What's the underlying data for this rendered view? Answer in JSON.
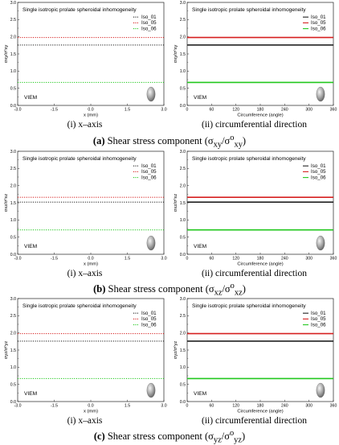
{
  "rows": [
    {
      "caption_prefix": "(a) ",
      "caption_text": "Shear stress component (σ",
      "caption_sub1": "xy",
      "caption_mid": "/σ",
      "caption_sup": "o",
      "caption_sub2": "xy",
      "caption_end": ")",
      "left_caption_num": "(i)",
      "left_caption_text": " x–axis",
      "right_caption_num": "(ii)",
      "right_caption_text": " circumferential direction",
      "ylabel": "σxy/σºxy"
    },
    {
      "caption_prefix": "(b) ",
      "caption_text": "Shear stress component (σ",
      "caption_sub1": "xz",
      "caption_mid": "/σ",
      "caption_sup": "o",
      "caption_sub2": "xz",
      "caption_end": ")",
      "left_caption_num": "(i)",
      "left_caption_text": " x–axis",
      "right_caption_num": "(ii)",
      "right_caption_text": " circumferential direction",
      "ylabel": "σxz/σºxz"
    },
    {
      "caption_prefix": "(c) ",
      "caption_text": "Shear stress component (σ",
      "caption_sub1": "yz",
      "caption_mid": "/σ",
      "caption_sup": "o",
      "caption_sub2": "yz",
      "caption_end": ")",
      "left_caption_num": "(i)",
      "left_caption_text": " x–axis",
      "right_caption_num": "(ii)",
      "right_caption_text": " circumferential direction",
      "ylabel": "σyz/σºyz"
    }
  ],
  "chart_data": [
    {
      "type": "line",
      "panel": "a-i",
      "title": "Single isotropic prolate spheroidal inhomogeneity",
      "xlabel": "x (mm)",
      "ylabel": "σxy/σºxy",
      "x_ticks": [
        "-3.0",
        "-1.5",
        "0.0",
        "1.5",
        "3.0"
      ],
      "y_ticks": [
        "0.0",
        "0.5",
        "1.0",
        "1.5",
        "2.0",
        "2.5",
        "3.0"
      ],
      "xlim": [
        -3.0,
        3.0
      ],
      "ylim": [
        0,
        3.0
      ],
      "style": "dotted",
      "legend_position": "top-right",
      "annotation": "VIEM",
      "series": [
        {
          "name": "Iso_01",
          "color": "#222222",
          "x": [
            -3.0,
            3.0
          ],
          "y": [
            1.76,
            1.76
          ]
        },
        {
          "name": "Iso_05",
          "color": "#d62020",
          "x": [
            -3.0,
            3.0
          ],
          "y": [
            1.98,
            1.98
          ]
        },
        {
          "name": "Iso_06",
          "color": "#22c81e",
          "x": [
            -3.0,
            3.0
          ],
          "y": [
            0.67,
            0.67
          ]
        }
      ]
    },
    {
      "type": "line",
      "panel": "a-ii",
      "title": "Single isotropic prolate spheroidal inhomogeneity",
      "xlabel": "Circumference (angle)",
      "ylabel": "σxy/σºxy",
      "x_ticks": [
        "0",
        "60",
        "120",
        "180",
        "240",
        "300",
        "360"
      ],
      "y_ticks": [
        "0.0",
        "0.5",
        "1.0",
        "1.5",
        "2.0",
        "2.5",
        "3.0"
      ],
      "xlim": [
        0,
        360
      ],
      "ylim": [
        0,
        3.0
      ],
      "style": "solid",
      "legend_position": "top-right",
      "annotation": "VIEM",
      "series": [
        {
          "name": "Iso_01",
          "color": "#222222",
          "x": [
            0,
            360
          ],
          "y": [
            1.76,
            1.76
          ]
        },
        {
          "name": "Iso_05",
          "color": "#d62020",
          "x": [
            0,
            360
          ],
          "y": [
            1.98,
            1.98
          ]
        },
        {
          "name": "Iso_06",
          "color": "#22c81e",
          "x": [
            0,
            360
          ],
          "y": [
            0.67,
            0.67
          ]
        }
      ]
    },
    {
      "type": "line",
      "panel": "b-i",
      "title": "Single isotropic prolate spheroidal inhomogeneity",
      "xlabel": "x (mm)",
      "ylabel": "σxz/σºxz",
      "x_ticks": [
        "-3.0",
        "-1.5",
        "0.0",
        "1.5",
        "3.0"
      ],
      "y_ticks": [
        "0.0",
        "0.5",
        "1.0",
        "1.5",
        "2.0",
        "2.5",
        "3.0"
      ],
      "xlim": [
        -3.0,
        3.0
      ],
      "ylim": [
        0,
        3.0
      ],
      "style": "dotted",
      "legend_position": "top-right",
      "annotation": "VIEM",
      "series": [
        {
          "name": "Iso_01",
          "color": "#222222",
          "x": [
            -3.0,
            3.0
          ],
          "y": [
            1.52,
            1.52
          ]
        },
        {
          "name": "Iso_05",
          "color": "#d62020",
          "x": [
            -3.0,
            3.0
          ],
          "y": [
            1.66,
            1.66
          ]
        },
        {
          "name": "Iso_06",
          "color": "#22c81e",
          "x": [
            -3.0,
            3.0
          ],
          "y": [
            0.71,
            0.71
          ]
        }
      ]
    },
    {
      "type": "line",
      "panel": "b-ii",
      "title": "Single isotropic prolate spheroidal inhomogeneity",
      "xlabel": "Circumference (angle)",
      "ylabel": "σxz/σºxz",
      "x_ticks": [
        "0",
        "60",
        "120",
        "180",
        "240",
        "300",
        "360"
      ],
      "y_ticks": [
        "0.0",
        "0.5",
        "1.0",
        "1.5",
        "2.0",
        "2.5",
        "3.0"
      ],
      "xlim": [
        0,
        360
      ],
      "ylim": [
        0,
        3.0
      ],
      "style": "solid",
      "legend_position": "top-right",
      "annotation": "VIEM",
      "series": [
        {
          "name": "Iso_01",
          "color": "#222222",
          "x": [
            0,
            360
          ],
          "y": [
            1.52,
            1.52
          ]
        },
        {
          "name": "Iso_05",
          "color": "#d62020",
          "x": [
            0,
            360
          ],
          "y": [
            1.66,
            1.66
          ]
        },
        {
          "name": "Iso_06",
          "color": "#22c81e",
          "x": [
            0,
            360
          ],
          "y": [
            0.71,
            0.71
          ]
        }
      ]
    },
    {
      "type": "line",
      "panel": "c-i",
      "title": "Single isotropic prolate spheroidal inhomogeneity",
      "xlabel": "x (mm)",
      "ylabel": "σyz/σºyz",
      "x_ticks": [
        "-3.0",
        "-1.5",
        "0.0",
        "1.5",
        "3.0"
      ],
      "y_ticks": [
        "0.0",
        "0.5",
        "1.0",
        "1.5",
        "2.0",
        "2.5",
        "3.0"
      ],
      "xlim": [
        -3.0,
        3.0
      ],
      "ylim": [
        0,
        3.0
      ],
      "style": "dotted",
      "legend_position": "top-right",
      "annotation": "VIEM",
      "series": [
        {
          "name": "Iso_01",
          "color": "#222222",
          "x": [
            -3.0,
            3.0
          ],
          "y": [
            1.76,
            1.76
          ]
        },
        {
          "name": "Iso_05",
          "color": "#d62020",
          "x": [
            -3.0,
            3.0
          ],
          "y": [
            1.98,
            1.98
          ]
        },
        {
          "name": "Iso_06",
          "color": "#22c81e",
          "x": [
            -3.0,
            3.0
          ],
          "y": [
            0.67,
            0.67
          ]
        }
      ]
    },
    {
      "type": "line",
      "panel": "c-ii",
      "title": "Single isotropic prolate spheroidal inhomogeneity",
      "xlabel": "Circumference (angle)",
      "ylabel": "σyz/σºyz",
      "x_ticks": [
        "0",
        "60",
        "120",
        "180",
        "240",
        "300",
        "360"
      ],
      "y_ticks": [
        "0.0",
        "0.5",
        "1.0",
        "1.5",
        "2.0",
        "2.5",
        "3.0"
      ],
      "xlim": [
        0,
        360
      ],
      "ylim": [
        0,
        3.0
      ],
      "style": "solid",
      "legend_position": "top-right",
      "annotation": "VIEM",
      "series": [
        {
          "name": "Iso_01",
          "color": "#222222",
          "x": [
            0,
            360
          ],
          "y": [
            1.76,
            1.76
          ]
        },
        {
          "name": "Iso_05",
          "color": "#d62020",
          "x": [
            0,
            360
          ],
          "y": [
            1.98,
            1.98
          ]
        },
        {
          "name": "Iso_06",
          "color": "#22c81e",
          "x": [
            0,
            360
          ],
          "y": [
            0.67,
            0.67
          ]
        }
      ]
    }
  ]
}
